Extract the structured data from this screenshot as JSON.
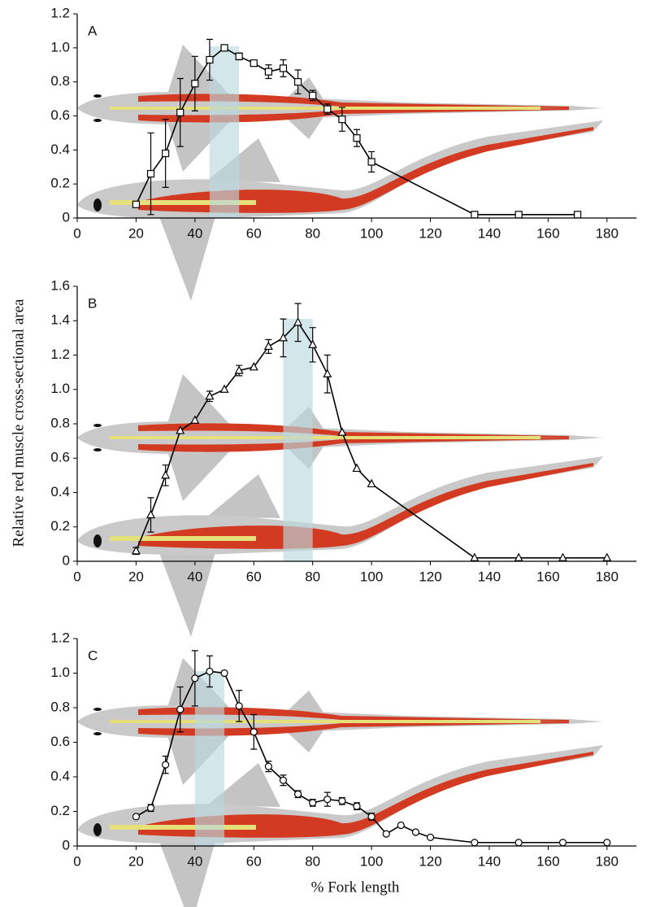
{
  "y_label": "Relative red muscle cross-sectional area",
  "x_label": "% Fork length",
  "chart_data": [
    {
      "type": "line",
      "panel_label": "A",
      "x": [
        20,
        25,
        30,
        35,
        40,
        45,
        50,
        55,
        60,
        65,
        70,
        75,
        80,
        85,
        90,
        95,
        100,
        135,
        150,
        170
      ],
      "series": [
        {
          "marker": "square",
          "color": "#000000",
          "values": [
            0.08,
            0.26,
            0.38,
            0.62,
            0.79,
            0.93,
            1.0,
            0.95,
            0.91,
            0.86,
            0.88,
            0.8,
            0.72,
            0.64,
            0.58,
            0.47,
            0.33,
            0.02,
            0.02,
            0.02
          ],
          "errors": [
            null,
            0.24,
            0.2,
            0.2,
            0.16,
            0.12,
            0.01,
            0.02,
            0.01,
            0.04,
            0.05,
            0.07,
            0.03,
            0.03,
            0.07,
            0.05,
            0.06,
            null,
            null,
            null
          ]
        }
      ],
      "xlim": [
        0,
        190
      ],
      "xticks": [
        0,
        20,
        40,
        60,
        80,
        100,
        120,
        140,
        160,
        180
      ],
      "ylim": [
        0,
        1.2
      ],
      "yticks": [
        0,
        0.2,
        0.4,
        0.6,
        0.8,
        {
          "value": 1,
          "label": "1.0"
        },
        1.2
      ],
      "shaded_range": [
        45,
        55
      ]
    },
    {
      "type": "line",
      "panel_label": "B",
      "x": [
        20,
        25,
        30,
        35,
        40,
        45,
        50,
        55,
        60,
        65,
        70,
        75,
        80,
        85,
        90,
        95,
        100,
        135,
        150,
        165,
        180
      ],
      "series": [
        {
          "marker": "triangle",
          "color": "#000000",
          "values": [
            0.06,
            0.27,
            0.5,
            0.76,
            0.82,
            0.96,
            1.0,
            1.11,
            1.13,
            1.25,
            1.3,
            1.39,
            1.26,
            1.09,
            0.75,
            0.54,
            0.45,
            0.02,
            0.02,
            0.02,
            0.02
          ],
          "errors": [
            0.02,
            0.1,
            0.06,
            null,
            null,
            0.03,
            null,
            0.03,
            null,
            0.04,
            0.11,
            0.11,
            0.1,
            0.11,
            null,
            null,
            null,
            null,
            null,
            null,
            null
          ]
        }
      ],
      "xlim": [
        0,
        190
      ],
      "xticks": [
        0,
        20,
        40,
        60,
        80,
        100,
        120,
        140,
        160,
        180
      ],
      "ylim": [
        0,
        1.6
      ],
      "yticks": [
        0,
        0.2,
        0.4,
        0.6,
        0.8,
        {
          "value": 1,
          "label": "1.0"
        },
        1.2,
        1.4,
        1.6
      ],
      "shaded_range": [
        70,
        80
      ]
    },
    {
      "type": "line",
      "panel_label": "C",
      "x": [
        20,
        25,
        30,
        35,
        40,
        45,
        50,
        55,
        60,
        65,
        70,
        75,
        80,
        85,
        90,
        95,
        100,
        105,
        110,
        115,
        120,
        135,
        150,
        165,
        180
      ],
      "series": [
        {
          "marker": "circle",
          "color": "#000000",
          "values": [
            0.17,
            0.22,
            0.47,
            0.79,
            0.97,
            1.01,
            1.0,
            0.81,
            0.66,
            0.46,
            0.38,
            0.3,
            0.25,
            0.27,
            0.26,
            0.23,
            0.17,
            0.07,
            0.12,
            0.08,
            0.05,
            0.02,
            0.02,
            0.02,
            0.02
          ],
          "errors": [
            null,
            0.02,
            0.05,
            0.13,
            0.16,
            0.09,
            null,
            0.09,
            0.1,
            0.03,
            0.03,
            0.02,
            0.02,
            0.04,
            0.02,
            0.02,
            0.02,
            null,
            null,
            null,
            null,
            null,
            null,
            null,
            null
          ]
        }
      ],
      "xlim": [
        0,
        190
      ],
      "xticks": [
        0,
        20,
        40,
        60,
        80,
        100,
        120,
        140,
        160,
        180
      ],
      "ylim": [
        0,
        1.2
      ],
      "yticks": [
        0,
        0.2,
        0.4,
        0.6,
        0.8,
        {
          "value": 1,
          "label": "1.0"
        },
        1.2
      ],
      "shaded_range": [
        40,
        50
      ]
    }
  ]
}
